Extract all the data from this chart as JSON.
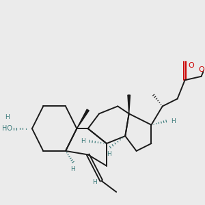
{
  "bg_color": "#ebebeb",
  "bond_color": "#1a1a1a",
  "stereo_color": "#3a7a7a",
  "o_color": "#cc0000",
  "line_width": 1.4,
  "figsize": [
    3.0,
    3.0
  ],
  "dpi": 100,
  "xlim": [
    0,
    10
  ],
  "ylim": [
    0,
    10
  ]
}
